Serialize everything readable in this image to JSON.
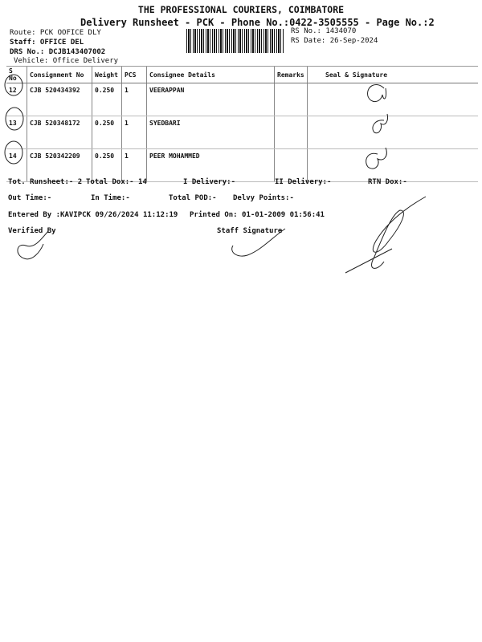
{
  "header": {
    "title": "THE PROFESSIONAL COURIERS, COIMBATORE",
    "subtitle": "Delivery Runsheet - PCK - Phone No.:0422-3505555 - Page No.:2",
    "route": "Route: PCK OOFICE DLY",
    "staff": "Staff: OFFICE DEL",
    "drs": "DRS No.: DCJB143407002",
    "vehicle": "Vehicle: Office Delivery",
    "rs_no": "RS No.: 1434070",
    "rs_date": "RS Date: 26-Sep-2024"
  },
  "table": {
    "columns": [
      "S No",
      "Consignment No",
      "Weight",
      "PCS",
      "Consignee Details",
      "Remarks",
      "Seal & Signature"
    ],
    "rows": [
      {
        "sno": "12",
        "consignment": "CJB 520434392",
        "weight": "0.250",
        "pcs": "1",
        "consignee": "VEERAPPAN",
        "remarks": ""
      },
      {
        "sno": "13",
        "consignment": "CJB 520348172",
        "weight": "0.250",
        "pcs": "1",
        "consignee": "SYEDBARI",
        "remarks": ""
      },
      {
        "sno": "14",
        "consignment": "CJB 520342209",
        "weight": "0.250",
        "pcs": "1",
        "consignee": "PEER MOHAMMED",
        "remarks": ""
      }
    ]
  },
  "summary": {
    "tot_runsheet": "Tot. Runsheet:- 2",
    "total_dox": "Total Dox:-   14",
    "i_delivery": "I Delivery:-",
    "ii_delivery": "II Delivery:-",
    "rtn_dox": "RTN Dox:-",
    "out_time": "Out Time:-",
    "in_time": "In Time:-",
    "total_pod": "Total POD:-",
    "delvy_points": "Delvy Points:-",
    "entered_by": "Entered By :KAVIPCK 09/26/2024 11:12:19",
    "printed_on": "Printed On: 01-01-2009 01:56:41",
    "verified_by": "Verified By",
    "staff_signature": "Staff Signature"
  }
}
